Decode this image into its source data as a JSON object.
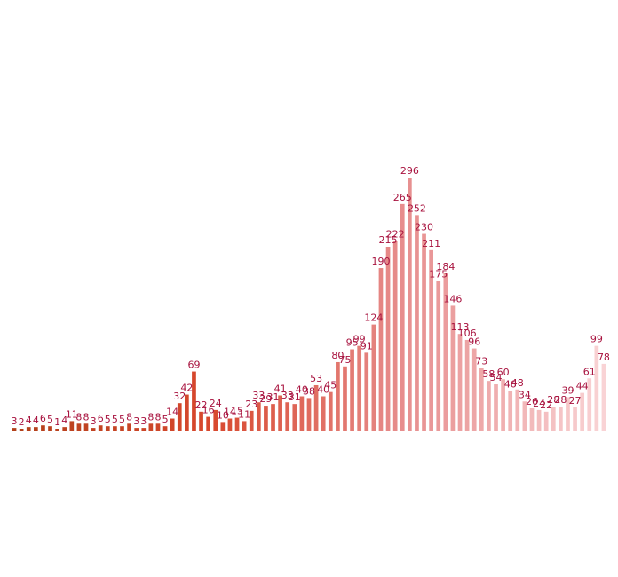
{
  "chart_data": {
    "type": "bar",
    "values": [
      3,
      2,
      4,
      4,
      6,
      5,
      1,
      4,
      11,
      8,
      8,
      3,
      6,
      5,
      5,
      5,
      8,
      3,
      3,
      8,
      8,
      5,
      14,
      32,
      42,
      69,
      22,
      16,
      24,
      10,
      14,
      15,
      11,
      23,
      33,
      29,
      31,
      41,
      33,
      31,
      40,
      38,
      53,
      40,
      45,
      80,
      75,
      95,
      99,
      91,
      124,
      190,
      215,
      222,
      265,
      296,
      252,
      230,
      211,
      175,
      184,
      146,
      113,
      106,
      96,
      73,
      58,
      54,
      60,
      46,
      48,
      34,
      26,
      24,
      22,
      28,
      28,
      39,
      27,
      44,
      61,
      99,
      78
    ],
    "ylim": [
      0,
      296
    ],
    "grid": false,
    "legend": "none",
    "color_ramp": [
      "#b2401a",
      "#d8482e",
      "#e78f8f",
      "#f9d3d5"
    ],
    "label_color": "#a8123e"
  }
}
